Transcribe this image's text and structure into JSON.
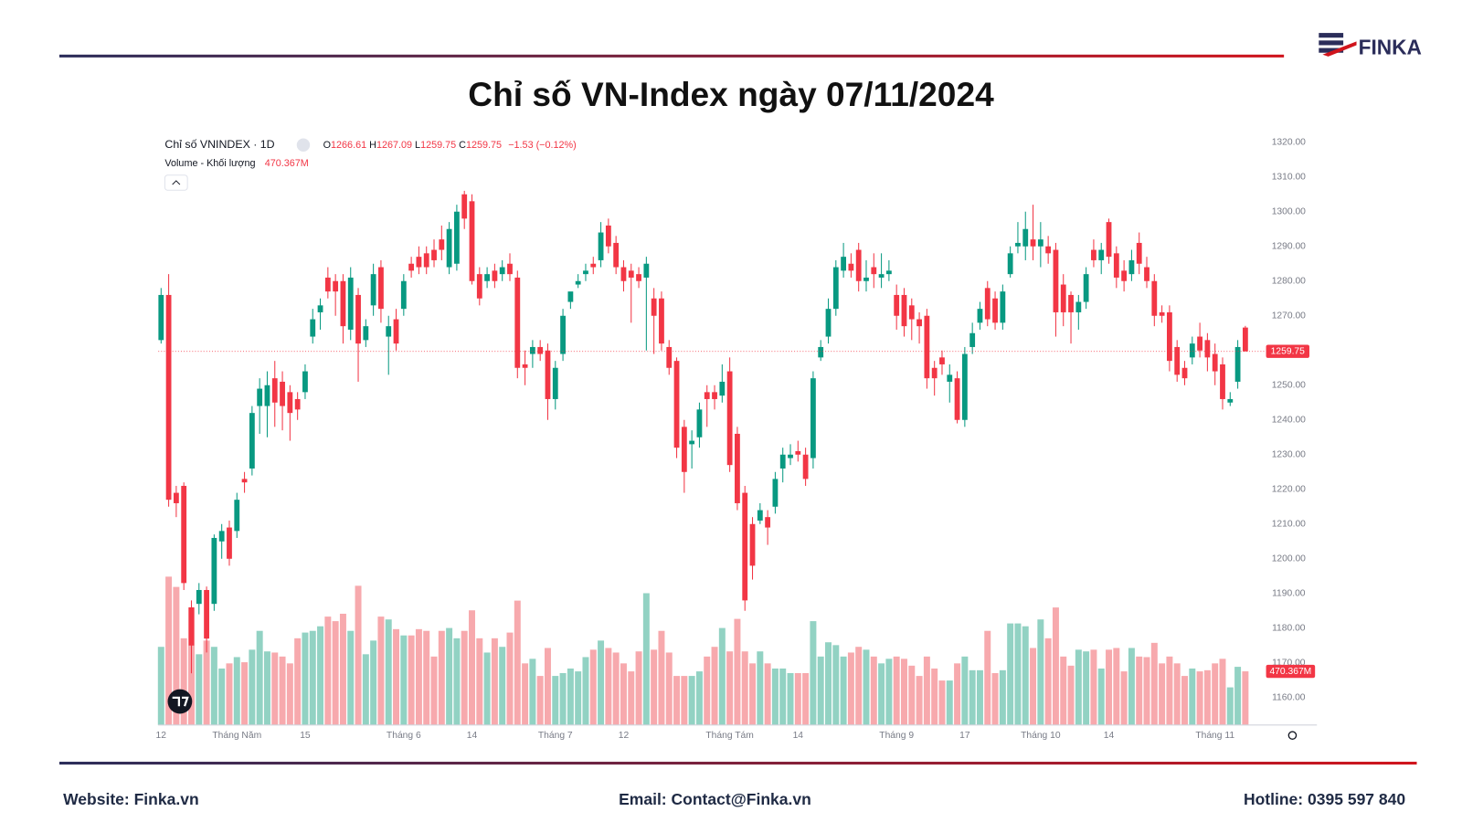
{
  "header": {
    "logo": "FINKA",
    "title": "Chỉ số VN-Index ngày 07/11/2024",
    "website": "Website: Finka.vn",
    "email": "Email: Contact@Finka.vn",
    "hotline": "Hotline: 0395 597 840"
  },
  "chart_data": {
    "type": "candlestick",
    "title": "Chỉ số VNINDEX · 1D",
    "ohlc_letters": [
      "O",
      "H",
      "L",
      "C"
    ],
    "change": "−1.53 (−0.12%)",
    "volume_title": "Volume - Khối lượng",
    "volume_label": "470.367M",
    "categories": [
      "12",
      null,
      null,
      null,
      null,
      null,
      null,
      null,
      null,
      null,
      "Tháng Năm",
      null,
      null,
      null,
      null,
      null,
      null,
      null,
      null,
      "15",
      null,
      null,
      null,
      null,
      null,
      null,
      null,
      null,
      null,
      null,
      null,
      null,
      "Tháng 6",
      null,
      null,
      null,
      null,
      null,
      null,
      null,
      null,
      "14",
      null,
      null,
      null,
      null,
      null,
      null,
      null,
      null,
      null,
      null,
      "Tháng 7",
      null,
      null,
      null,
      null,
      null,
      null,
      null,
      null,
      "12",
      null,
      null,
      null,
      null,
      null,
      null,
      null,
      null,
      null,
      null,
      null,
      null,
      null,
      "Tháng Tám",
      null,
      null,
      null,
      null,
      null,
      null,
      null,
      null,
      "14",
      null,
      null,
      null,
      null,
      null,
      null,
      null,
      null,
      null,
      null,
      null,
      null,
      "Tháng 9",
      null,
      null,
      null,
      null,
      null,
      null,
      null,
      null,
      "17",
      null,
      null,
      null,
      null,
      null,
      null,
      null,
      null,
      null,
      "Tháng 10",
      null,
      null,
      null,
      null,
      null,
      null,
      null,
      null,
      "14",
      null,
      null,
      null,
      null,
      null,
      null,
      null,
      null,
      null,
      null,
      null,
      null,
      null,
      "Tháng 11",
      null,
      null,
      null,
      null
    ],
    "open": [
      1263,
      1276,
      1219,
      1221,
      1186,
      1187,
      1191,
      1187,
      1205,
      1209,
      1208,
      1223,
      1226,
      1244,
      1244,
      1252,
      1251,
      1248,
      1246,
      1248,
      1264,
      1271,
      1281,
      1280,
      1280,
      1266,
      1276,
      1263,
      1273,
      1284,
      1264,
      1269,
      1272,
      1285,
      1287,
      1288,
      1289,
      1292,
      1284,
      1285,
      1305,
      1303,
      1282,
      1280,
      1283,
      1282,
      1285,
      1281,
      1256,
      1259,
      1261,
      1260,
      1246,
      1259,
      1274,
      1279,
      1282,
      1285,
      1286,
      1296,
      1291,
      1284,
      1283,
      1282,
      1281,
      1275,
      1275,
      1261,
      1257,
      1238,
      1233,
      1235,
      1248,
      1248,
      1247,
      1254,
      1236,
      1219,
      1210,
      1211,
      1212,
      1215,
      1226,
      1229,
      1231,
      1230,
      1229,
      1258,
      1264,
      1272,
      1283,
      1285,
      1289,
      1280,
      1284,
      1281,
      1282,
      1276,
      1276,
      1273,
      1269,
      1270,
      1255,
      1258,
      1251,
      1252,
      1240,
      1261,
      1268,
      1278,
      1275,
      1268,
      1282,
      1290,
      1290,
      1292,
      1290,
      1290,
      1289,
      1279,
      1276,
      1271,
      1274,
      1289,
      1286,
      1297,
      1288,
      1283,
      1282,
      1291,
      1284,
      1280,
      1271,
      1271,
      1261,
      1255,
      1258,
      1264,
      1263,
      1259,
      1256,
      1245,
      1251,
      1266.61
    ],
    "high": [
      1278,
      1282,
      1221,
      1222,
      1188,
      1193,
      1192,
      1207,
      1210,
      1211,
      1219,
      1225,
      1244,
      1252,
      1254,
      1257,
      1254,
      1250,
      1248,
      1256,
      1272,
      1275,
      1284,
      1282,
      1282,
      1284,
      1278,
      1269,
      1285,
      1286,
      1270,
      1272,
      1282,
      1287,
      1290,
      1290,
      1292,
      1296,
      1297,
      1302,
      1306,
      1305,
      1284,
      1284,
      1285,
      1286,
      1288,
      1283,
      1260,
      1263,
      1263,
      1262,
      1257,
      1272,
      1276,
      1282,
      1285,
      1287,
      1297,
      1298,
      1293,
      1286,
      1285,
      1284,
      1287,
      1278,
      1277,
      1263,
      1258,
      1240,
      1237,
      1245,
      1250,
      1250,
      1256,
      1258,
      1238,
      1221,
      1212,
      1216,
      1214,
      1225,
      1232,
      1233,
      1234,
      1232,
      1254,
      1263,
      1275,
      1286,
      1291,
      1288,
      1291,
      1286,
      1288,
      1288,
      1286,
      1279,
      1278,
      1275,
      1271,
      1272,
      1257,
      1260,
      1256,
      1254,
      1261,
      1268,
      1274,
      1280,
      1277,
      1279,
      1290,
      1297,
      1300,
      1302,
      1297,
      1293,
      1291,
      1282,
      1277,
      1276,
      1284,
      1292,
      1291,
      1298,
      1290,
      1286,
      1289,
      1294,
      1287,
      1282,
      1273,
      1273,
      1263,
      1257,
      1264,
      1268,
      1265,
      1262,
      1258,
      1248,
      1263,
      1267.09
    ],
    "low": [
      1262,
      1215,
      1212,
      1191,
      1167,
      1184,
      1173,
      1185,
      1200,
      1198,
      1206,
      1219,
      1224,
      1236,
      1235,
      1238,
      1237,
      1234,
      1240,
      1246,
      1262,
      1266,
      1275,
      1270,
      1262,
      1263,
      1251,
      1261,
      1270,
      1268,
      1253,
      1260,
      1270,
      1281,
      1282,
      1282,
      1284,
      1286,
      1282,
      1283,
      1295,
      1279,
      1273,
      1278,
      1278,
      1280,
      1280,
      1252,
      1250,
      1255,
      1257,
      1240,
      1243,
      1257,
      1272,
      1278,
      1280,
      1282,
      1284,
      1288,
      1282,
      1277,
      1268,
      1278,
      1260,
      1259,
      1260,
      1253,
      1229,
      1219,
      1226,
      1232,
      1238,
      1243,
      1245,
      1225,
      1214,
      1185,
      1194,
      1210,
      1204,
      1213,
      1222,
      1227,
      1228,
      1221,
      1226,
      1257,
      1262,
      1270,
      1281,
      1281,
      1277,
      1277,
      1278,
      1278,
      1280,
      1266,
      1264,
      1263,
      1262,
      1249,
      1247,
      1253,
      1245,
      1239,
      1238,
      1259,
      1266,
      1267,
      1266,
      1266,
      1281,
      1288,
      1286,
      1286,
      1284,
      1285,
      1264,
      1267,
      1262,
      1266,
      1272,
      1284,
      1282,
      1285,
      1278,
      1277,
      1280,
      1282,
      1278,
      1267,
      1268,
      1254,
      1251,
      1250,
      1256,
      1258,
      1254,
      1250,
      1243,
      1244,
      1249,
      1259.75
    ],
    "close": [
      1276,
      1217,
      1216,
      1193,
      1175,
      1191,
      1177,
      1206,
      1208,
      1200,
      1217,
      1222,
      1242,
      1249,
      1250,
      1245,
      1244,
      1242,
      1243,
      1254,
      1269,
      1273,
      1277,
      1277,
      1267,
      1281,
      1262,
      1267,
      1282,
      1272,
      1267,
      1262,
      1280,
      1283,
      1284,
      1284,
      1286,
      1289,
      1295,
      1300,
      1298,
      1280,
      1275,
      1282,
      1280,
      1284,
      1282,
      1255,
      1255,
      1261,
      1259,
      1246,
      1255,
      1270,
      1277,
      1280,
      1283,
      1284,
      1294,
      1290,
      1284,
      1280,
      1281,
      1280,
      1285,
      1270,
      1262,
      1255,
      1232,
      1225,
      1234,
      1243,
      1246,
      1246,
      1251,
      1227,
      1216,
      1188,
      1198,
      1214,
      1209,
      1223,
      1230,
      1230,
      1230,
      1223,
      1252,
      1261,
      1272,
      1284,
      1287,
      1283,
      1280,
      1281,
      1282,
      1282,
      1283,
      1270,
      1267,
      1269,
      1267,
      1252,
      1252,
      1256,
      1253,
      1240,
      1259,
      1265,
      1272,
      1269,
      1268,
      1277,
      1288,
      1291,
      1295,
      1290,
      1292,
      1288,
      1271,
      1271,
      1271,
      1274,
      1282,
      1286,
      1289,
      1287,
      1281,
      1280,
      1286,
      1285,
      1280,
      1270,
      1270,
      1257,
      1253,
      1252,
      1262,
      1260,
      1258,
      1254,
      1246,
      1246,
      1261,
      1259.75
    ],
    "volume": [
      685,
      1300,
      1210,
      760,
      1030,
      620,
      740,
      685,
      495,
      540,
      595,
      550,
      660,
      825,
      645,
      635,
      600,
      540,
      760,
      810,
      825,
      865,
      950,
      910,
      975,
      825,
      1220,
      620,
      740,
      950,
      925,
      840,
      785,
      785,
      840,
      825,
      600,
      825,
      850,
      760,
      825,
      1005,
      760,
      635,
      760,
      685,
      810,
      1090,
      540,
      580,
      430,
      675,
      430,
      455,
      495,
      470,
      595,
      660,
      740,
      675,
      635,
      540,
      470,
      645,
      1155,
      660,
      825,
      635,
      430,
      430,
      430,
      470,
      600,
      685,
      850,
      645,
      930,
      645,
      540,
      645,
      540,
      495,
      495,
      455,
      455,
      455,
      910,
      600,
      725,
      700,
      600,
      635,
      685,
      660,
      600,
      540,
      580,
      600,
      580,
      520,
      430,
      600,
      495,
      390,
      390,
      540,
      600,
      480,
      480,
      825,
      455,
      480,
      890,
      890,
      865,
      675,
      925,
      760,
      1030,
      600,
      520,
      660,
      645,
      660,
      495,
      660,
      675,
      470,
      675,
      600,
      595,
      720,
      540,
      600,
      540,
      430,
      495,
      470,
      480,
      540,
      580,
      330,
      510,
      470.367
    ],
    "up_color": "#089981",
    "down_color": "#f23645",
    "up_volume_color": "#92d2c3",
    "down_volume_color": "#f7a9ad",
    "ylim": [
      1152.1,
      1323
    ],
    "yticks": [
      {
        "value": 1160,
        "label": "1160.00"
      },
      {
        "value": 1170,
        "label": "1170.00"
      },
      {
        "value": 1180,
        "label": "1180.00"
      },
      {
        "value": 1190,
        "label": "1190.00"
      },
      {
        "value": 1200,
        "label": "1200.00"
      },
      {
        "value": 1210,
        "label": "1210.00"
      },
      {
        "value": 1220,
        "label": "1220.00"
      },
      {
        "value": 1230,
        "label": "1230.00"
      },
      {
        "value": 1240,
        "label": "1240.00"
      },
      {
        "value": 1250,
        "label": "1250.00"
      },
      {
        "value": 1260,
        "label": "1260.00"
      },
      {
        "value": 1270,
        "label": "1270.00"
      },
      {
        "value": 1280,
        "label": "1280.00"
      },
      {
        "value": 1290,
        "label": "1290.00"
      },
      {
        "value": 1300,
        "label": "1300.00"
      },
      {
        "value": 1310,
        "label": "1310.00"
      },
      {
        "value": 1320,
        "label": "1320.00"
      }
    ],
    "grid": false
  }
}
